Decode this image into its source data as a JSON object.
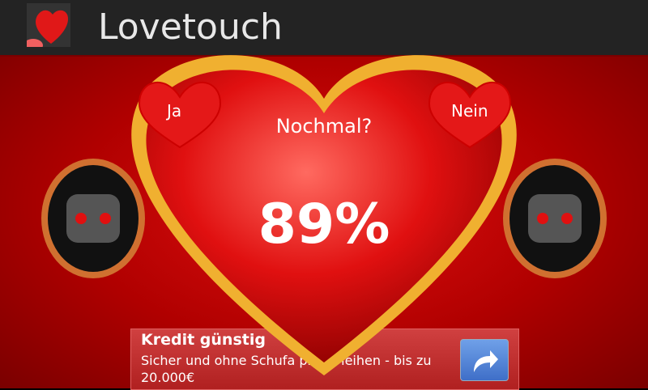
{
  "app": {
    "title": "Lovetouch",
    "icon": "heart-icon"
  },
  "heart": {
    "question": "Nochmal?",
    "percent": "89%",
    "yes_label": "Ja",
    "no_label": "Nein"
  },
  "ad": {
    "title": "Kredit günstig",
    "text": "Sicher und ohne Schufa privat leihen - bis zu 20.000€",
    "button_icon": "share-arrow-icon"
  },
  "colors": {
    "background": "#c00000",
    "bar": "#232323",
    "heart_border": "#f0b030",
    "ad_button": "#4f80d8"
  }
}
